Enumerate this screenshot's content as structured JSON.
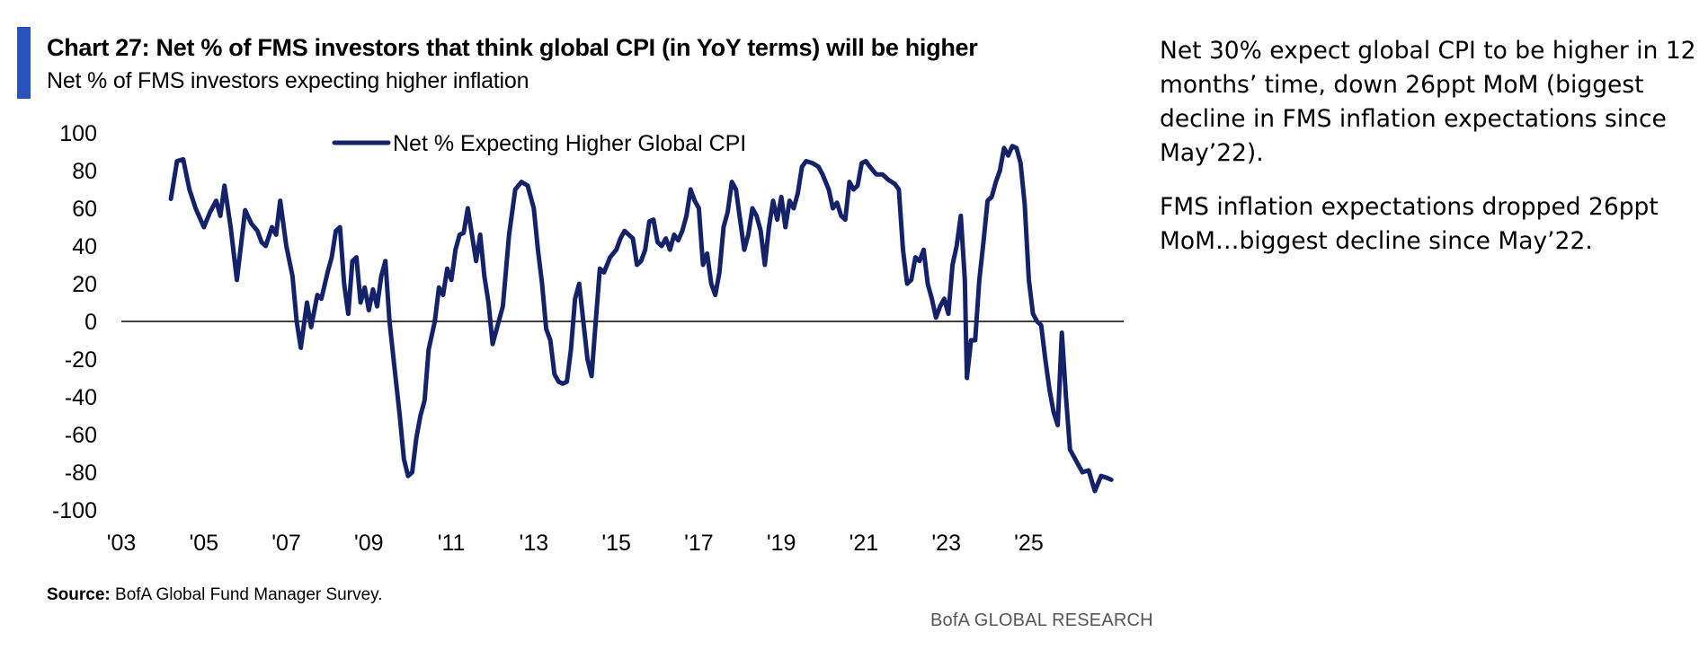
{
  "header": {
    "title": "Chart 27: Net % of FMS investors that think global CPI (in YoY terms) will be higher",
    "subtitle": "Net % of FMS investors expecting higher inflation"
  },
  "colors": {
    "accent": "#2a52be",
    "line": "#14226a"
  },
  "chart_data": {
    "type": "line",
    "title": "",
    "xlabel": "",
    "ylabel": "",
    "ylim": [
      -100,
      100
    ],
    "yticks": [
      100,
      80,
      60,
      40,
      20,
      0,
      -20,
      -40,
      -60,
      -80,
      -100
    ],
    "xlim": [
      2003.0,
      2027.3
    ],
    "xticks": [
      {
        "label": "'03",
        "year": 2003
      },
      {
        "label": "'05",
        "year": 2005
      },
      {
        "label": "'07",
        "year": 2007
      },
      {
        "label": "'09",
        "year": 2009
      },
      {
        "label": "'11",
        "year": 2011
      },
      {
        "label": "'13",
        "year": 2013
      },
      {
        "label": "'15",
        "year": 2015
      },
      {
        "label": "'17",
        "year": 2017
      },
      {
        "label": "'19",
        "year": 2019
      },
      {
        "label": "'21",
        "year": 2021
      },
      {
        "label": "'23",
        "year": 2023
      },
      {
        "label": "'25",
        "year": 2025
      }
    ],
    "grid": false,
    "legend": {
      "position": "top-center",
      "entries": [
        "Net % Expecting Higher Global CPI"
      ]
    },
    "series": [
      {
        "name": "Net % Expecting Higher Global CPI",
        "points": [
          [
            2004.2,
            65
          ],
          [
            2004.35,
            85
          ],
          [
            2004.5,
            86
          ],
          [
            2004.65,
            70
          ],
          [
            2004.8,
            60
          ],
          [
            2005.0,
            50
          ],
          [
            2005.15,
            58
          ],
          [
            2005.3,
            64
          ],
          [
            2005.4,
            56
          ],
          [
            2005.5,
            72
          ],
          [
            2005.65,
            50
          ],
          [
            2005.8,
            22
          ],
          [
            2006.0,
            59
          ],
          [
            2006.15,
            52
          ],
          [
            2006.3,
            48
          ],
          [
            2006.4,
            42
          ],
          [
            2006.5,
            40
          ],
          [
            2006.65,
            50
          ],
          [
            2006.75,
            46
          ],
          [
            2006.85,
            64
          ],
          [
            2007.0,
            40
          ],
          [
            2007.15,
            24
          ],
          [
            2007.25,
            0
          ],
          [
            2007.35,
            -14
          ],
          [
            2007.5,
            10
          ],
          [
            2007.6,
            -3
          ],
          [
            2007.75,
            14
          ],
          [
            2007.85,
            12
          ],
          [
            2008.0,
            26
          ],
          [
            2008.1,
            34
          ],
          [
            2008.2,
            48
          ],
          [
            2008.3,
            50
          ],
          [
            2008.4,
            20
          ],
          [
            2008.5,
            4
          ],
          [
            2008.6,
            32
          ],
          [
            2008.7,
            34
          ],
          [
            2008.8,
            10
          ],
          [
            2008.9,
            18
          ],
          [
            2009.0,
            6
          ],
          [
            2009.1,
            17
          ],
          [
            2009.2,
            8
          ],
          [
            2009.3,
            24
          ],
          [
            2009.4,
            32
          ],
          [
            2009.5,
            0
          ],
          [
            2009.6,
            -20
          ],
          [
            2009.75,
            -50
          ],
          [
            2009.85,
            -73
          ],
          [
            2009.95,
            -82
          ],
          [
            2010.05,
            -80
          ],
          [
            2010.15,
            -62
          ],
          [
            2010.25,
            -50
          ],
          [
            2010.35,
            -42
          ],
          [
            2010.45,
            -15
          ],
          [
            2010.6,
            0
          ],
          [
            2010.7,
            18
          ],
          [
            2010.8,
            14
          ],
          [
            2010.9,
            28
          ],
          [
            2011.0,
            22
          ],
          [
            2011.1,
            38
          ],
          [
            2011.2,
            46
          ],
          [
            2011.3,
            47
          ],
          [
            2011.4,
            60
          ],
          [
            2011.5,
            46
          ],
          [
            2011.6,
            32
          ],
          [
            2011.7,
            46
          ],
          [
            2011.8,
            24
          ],
          [
            2011.9,
            10
          ],
          [
            2012.0,
            -12
          ],
          [
            2012.15,
            0
          ],
          [
            2012.25,
            8
          ],
          [
            2012.4,
            46
          ],
          [
            2012.55,
            70
          ],
          [
            2012.7,
            74
          ],
          [
            2012.85,
            72
          ],
          [
            2013.0,
            60
          ],
          [
            2013.1,
            38
          ],
          [
            2013.2,
            20
          ],
          [
            2013.3,
            -4
          ],
          [
            2013.4,
            -10
          ],
          [
            2013.5,
            -28
          ],
          [
            2013.6,
            -32
          ],
          [
            2013.7,
            -33
          ],
          [
            2013.8,
            -32
          ],
          [
            2013.9,
            -15
          ],
          [
            2014.0,
            12
          ],
          [
            2014.1,
            20
          ],
          [
            2014.2,
            0
          ],
          [
            2014.3,
            -20
          ],
          [
            2014.4,
            -29
          ],
          [
            2014.5,
            0
          ],
          [
            2014.6,
            28
          ],
          [
            2014.7,
            26
          ],
          [
            2014.85,
            34
          ],
          [
            2015.0,
            38
          ],
          [
            2015.1,
            44
          ],
          [
            2015.2,
            48
          ],
          [
            2015.3,
            46
          ],
          [
            2015.4,
            44
          ],
          [
            2015.5,
            30
          ],
          [
            2015.6,
            32
          ],
          [
            2015.7,
            38
          ],
          [
            2015.8,
            53
          ],
          [
            2015.9,
            54
          ],
          [
            2016.0,
            42
          ],
          [
            2016.1,
            40
          ],
          [
            2016.2,
            44
          ],
          [
            2016.3,
            38
          ],
          [
            2016.4,
            46
          ],
          [
            2016.5,
            43
          ],
          [
            2016.6,
            48
          ],
          [
            2016.7,
            56
          ],
          [
            2016.8,
            70
          ],
          [
            2016.9,
            64
          ],
          [
            2017.0,
            60
          ],
          [
            2017.1,
            30
          ],
          [
            2017.2,
            36
          ],
          [
            2017.3,
            20
          ],
          [
            2017.4,
            14
          ],
          [
            2017.5,
            26
          ],
          [
            2017.6,
            50
          ],
          [
            2017.7,
            58
          ],
          [
            2017.8,
            74
          ],
          [
            2017.9,
            70
          ],
          [
            2018.0,
            54
          ],
          [
            2018.1,
            38
          ],
          [
            2018.2,
            46
          ],
          [
            2018.3,
            60
          ],
          [
            2018.4,
            56
          ],
          [
            2018.5,
            48
          ],
          [
            2018.6,
            30
          ],
          [
            2018.7,
            50
          ],
          [
            2018.8,
            64
          ],
          [
            2018.9,
            54
          ],
          [
            2019.0,
            66
          ],
          [
            2019.1,
            50
          ],
          [
            2019.2,
            64
          ],
          [
            2019.3,
            60
          ],
          [
            2019.4,
            68
          ],
          [
            2019.5,
            82
          ],
          [
            2019.6,
            85
          ],
          [
            2019.75,
            84
          ],
          [
            2019.9,
            82
          ],
          [
            2020.0,
            78
          ],
          [
            2020.15,
            70
          ],
          [
            2020.25,
            60
          ],
          [
            2020.35,
            63
          ],
          [
            2020.45,
            56
          ],
          [
            2020.55,
            54
          ],
          [
            2020.65,
            74
          ],
          [
            2020.75,
            70
          ],
          [
            2020.85,
            72
          ],
          [
            2020.95,
            84
          ],
          [
            2021.05,
            85
          ],
          [
            2021.15,
            82
          ],
          [
            2021.3,
            78
          ],
          [
            2021.45,
            78
          ],
          [
            2021.6,
            75
          ],
          [
            2021.75,
            73
          ],
          [
            2021.85,
            70
          ],
          [
            2021.95,
            38
          ],
          [
            2022.05,
            20
          ],
          [
            2022.15,
            22
          ],
          [
            2022.25,
            34
          ],
          [
            2022.35,
            32
          ],
          [
            2022.45,
            38
          ],
          [
            2022.55,
            20
          ],
          [
            2022.65,
            12
          ],
          [
            2022.75,
            2
          ],
          [
            2022.85,
            8
          ],
          [
            2022.95,
            12
          ],
          [
            2023.05,
            4
          ],
          [
            2023.15,
            30
          ],
          [
            2023.25,
            40
          ],
          [
            2023.35,
            56
          ],
          [
            2023.45,
            22
          ],
          [
            2023.5,
            -30
          ],
          [
            2023.6,
            -10
          ],
          [
            2023.7,
            -10
          ],
          [
            2023.8,
            22
          ],
          [
            2023.9,
            42
          ],
          [
            2024.0,
            64
          ],
          [
            2024.1,
            66
          ],
          [
            2024.2,
            74
          ],
          [
            2024.3,
            80
          ],
          [
            2024.4,
            92
          ],
          [
            2024.5,
            88
          ],
          [
            2024.6,
            93
          ],
          [
            2024.7,
            92
          ],
          [
            2024.8,
            84
          ],
          [
            2024.9,
            62
          ],
          [
            2025.0,
            22
          ],
          [
            2025.1,
            4
          ],
          [
            2025.2,
            0
          ],
          [
            2025.3,
            -2
          ],
          [
            2025.4,
            -20
          ],
          [
            2025.5,
            -36
          ],
          [
            2025.6,
            -48
          ],
          [
            2025.7,
            -55
          ],
          [
            2025.8,
            -6
          ],
          [
            2025.9,
            -40
          ],
          [
            2026.0,
            -68
          ],
          [
            2026.15,
            -74
          ],
          [
            2026.3,
            -80
          ],
          [
            2026.45,
            -79
          ],
          [
            2026.6,
            -90
          ],
          [
            2026.75,
            -82
          ],
          [
            2026.9,
            -83
          ],
          [
            2027.0,
            -84
          ]
        ]
      }
    ]
  },
  "side_notes": [
    "Net 30% expect global CPI to be higher in 12 months’ time, down 26ppt MoM (biggest decline in FMS inflation expectations since May’22).",
    "FMS inflation expectations dropped 26ppt MoM…biggest decline since May’22."
  ],
  "source": {
    "label": "Source:",
    "text": " BofA Global Fund Manager Survey."
  },
  "brand": "BofA GLOBAL RESEARCH"
}
